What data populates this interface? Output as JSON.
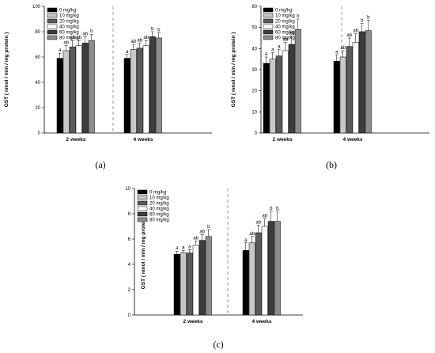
{
  "legend_labels": [
    "0 mg/kg",
    "10 mg/kg",
    "20 mg/kg",
    "40 mg/kg",
    "60 mg/kg",
    "80 mg/kg"
  ],
  "series_colors": [
    "#000000",
    "#c8c8c8",
    "#5a5a5a",
    "#ffffff",
    "#3c3c3c",
    "#8c8c8c"
  ],
  "chart_data": [
    {
      "type": "bar",
      "panel_label": "(a)",
      "ylabel": "GST ( nmol / min / mg protein )",
      "ylim": [
        0,
        100
      ],
      "yticks": [
        0,
        20,
        40,
        60,
        80,
        100
      ],
      "categories": [
        "2 weeks",
        "4 weeks"
      ],
      "series": [
        {
          "name": "0 mg/kg",
          "values": [
            59,
            59
          ],
          "errors": [
            4,
            3
          ]
        },
        {
          "name": "10 mg/kg",
          "values": [
            65,
            66
          ],
          "errors": [
            4,
            4
          ]
        },
        {
          "name": "20 mg/kg",
          "values": [
            68,
            67
          ],
          "errors": [
            5,
            4
          ]
        },
        {
          "name": "40 mg/kg",
          "values": [
            69,
            69
          ],
          "errors": [
            4,
            4
          ]
        },
        {
          "name": "60 mg/kg",
          "values": [
            71,
            76
          ],
          "errors": [
            5,
            4
          ]
        },
        {
          "name": "80 mg/kg",
          "values": [
            73,
            75
          ],
          "errors": [
            5,
            4
          ]
        }
      ],
      "significance": [
        [
          "a",
          "ab",
          "ab",
          "ab",
          "ab",
          "b"
        ],
        [
          "a",
          "ab",
          "ab",
          "ab",
          "b",
          "b"
        ]
      ],
      "grid": false
    },
    {
      "type": "bar",
      "panel_label": "(b)",
      "ylabel": "GST ( nmol / min / mg protein )",
      "ylim": [
        0,
        60
      ],
      "yticks": [
        0,
        10,
        20,
        30,
        40,
        50,
        60
      ],
      "categories": [
        "2 weeks",
        "4 weeks"
      ],
      "series": [
        {
          "name": "0 mg/kg",
          "values": [
            33,
            34
          ],
          "errors": [
            3,
            3
          ]
        },
        {
          "name": "10 mg/kg",
          "values": [
            35,
            36
          ],
          "errors": [
            3,
            3
          ]
        },
        {
          "name": "20 mg/kg",
          "values": [
            36.5,
            41
          ],
          "errors": [
            3,
            4
          ]
        },
        {
          "name": "40 mg/kg",
          "values": [
            39,
            43
          ],
          "errors": [
            4,
            4
          ]
        },
        {
          "name": "60 mg/kg",
          "values": [
            42,
            48
          ],
          "errors": [
            4,
            4
          ]
        },
        {
          "name": "80 mg/kg",
          "values": [
            49,
            48.5
          ],
          "errors": [
            5,
            5
          ]
        }
      ],
      "significance": [
        [
          "a",
          "a",
          "a",
          "ab",
          "ab",
          "b"
        ],
        [
          "a",
          "ab",
          "ab",
          "ab",
          "b",
          "b"
        ]
      ],
      "grid": false
    },
    {
      "type": "bar",
      "panel_label": "(c)",
      "ylabel": "GST ( nmol / min / mg protein )",
      "ylim": [
        0,
        10
      ],
      "yticks": [
        0,
        2,
        4,
        6,
        8,
        10
      ],
      "categories": [
        "2 weeks",
        "4 weeks"
      ],
      "series": [
        {
          "name": "0 mg/kg",
          "values": [
            4.8,
            5.1
          ],
          "errors": [
            0.25,
            0.6
          ]
        },
        {
          "name": "10 mg/kg",
          "values": [
            4.9,
            5.7
          ],
          "errors": [
            0.2,
            0.5
          ]
        },
        {
          "name": "20 mg/kg",
          "values": [
            4.9,
            6.5
          ],
          "errors": [
            0.25,
            0.6
          ]
        },
        {
          "name": "40 mg/kg",
          "values": [
            5.5,
            7.0
          ],
          "errors": [
            0.35,
            0.6
          ]
        },
        {
          "name": "60 mg/kg",
          "values": [
            5.9,
            7.4
          ],
          "errors": [
            0.45,
            0.8
          ]
        },
        {
          "name": "80 mg/kg",
          "values": [
            6.2,
            7.4
          ],
          "errors": [
            0.55,
            0.8
          ]
        }
      ],
      "significance": [
        [
          "a",
          "a",
          "a",
          "ab",
          "ab",
          "b"
        ],
        [
          "a",
          "ab",
          "ab",
          "ab",
          "b",
          "b"
        ]
      ],
      "grid": false
    }
  ]
}
